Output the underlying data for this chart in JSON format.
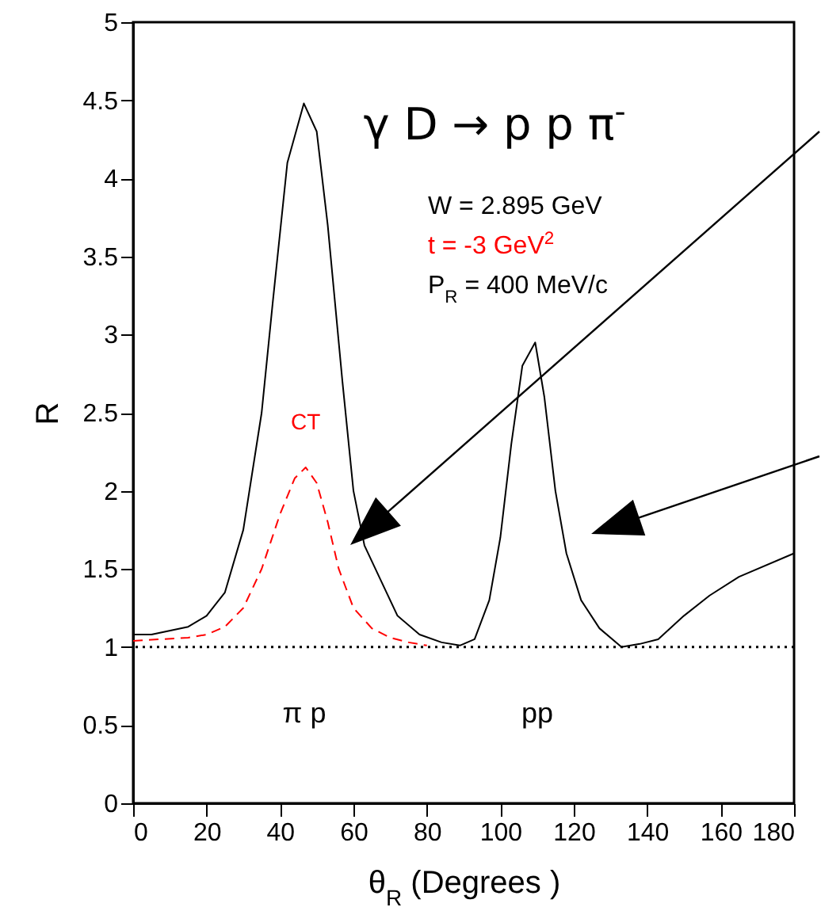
{
  "chart_data": {
    "type": "line",
    "title": "γ D → p p π$^{-}$",
    "xlabel": "θ$_{R}$  (Degrees )",
    "ylabel": "R",
    "series": [
      {
        "color": "#000000",
        "line_style": "solid",
        "x": [
          0,
          5,
          15,
          20,
          25,
          30,
          35,
          38,
          42,
          46.5,
          50,
          53,
          57,
          60,
          63,
          67,
          72,
          78,
          84,
          89,
          93,
          97,
          100,
          103,
          106,
          109.5,
          112,
          115,
          118,
          122,
          127,
          133,
          138,
          143,
          150,
          157,
          165,
          180
        ],
        "values": [
          1.08,
          1.08,
          1.13,
          1.2,
          1.35,
          1.75,
          2.5,
          3.2,
          4.1,
          4.48,
          4.3,
          3.7,
          2.7,
          2.0,
          1.65,
          1.45,
          1.2,
          1.08,
          1.03,
          1.01,
          1.05,
          1.3,
          1.7,
          2.3,
          2.8,
          2.95,
          2.6,
          2.0,
          1.6,
          1.3,
          1.12,
          1.0,
          1.02,
          1.05,
          1.2,
          1.33,
          1.45,
          1.6
        ]
      },
      {
        "name": "CT",
        "color": "#ff0000",
        "line_style": "dashed",
        "x": [
          0,
          15,
          20,
          25,
          30,
          35,
          40,
          44,
          47,
          50,
          53,
          56,
          60,
          65,
          70,
          75,
          80
        ],
        "values": [
          1.04,
          1.06,
          1.08,
          1.13,
          1.25,
          1.5,
          1.85,
          2.08,
          2.15,
          2.05,
          1.8,
          1.5,
          1.25,
          1.12,
          1.06,
          1.03,
          1.01
        ]
      }
    ],
    "xlim": [
      0,
      180
    ],
    "xticks": [
      0,
      20,
      40,
      60,
      80,
      100,
      120,
      140,
      160,
      180
    ],
    "ylim": [
      0,
      5
    ],
    "yticks": [
      0,
      0.5,
      1,
      1.5,
      2,
      2.5,
      3,
      3.5,
      4,
      4.5,
      5
    ],
    "ref_lines": [
      {
        "axis": "y",
        "value": 1,
        "color": "#000000",
        "line_style": "dotted"
      }
    ],
    "annotations": [
      "W  = 2.895 GeV",
      "t    = -3 GeV$^{2}$",
      "P$_{R}$ = 400 MeV/c",
      "π p",
      "pp"
    ],
    "grid": false
  }
}
